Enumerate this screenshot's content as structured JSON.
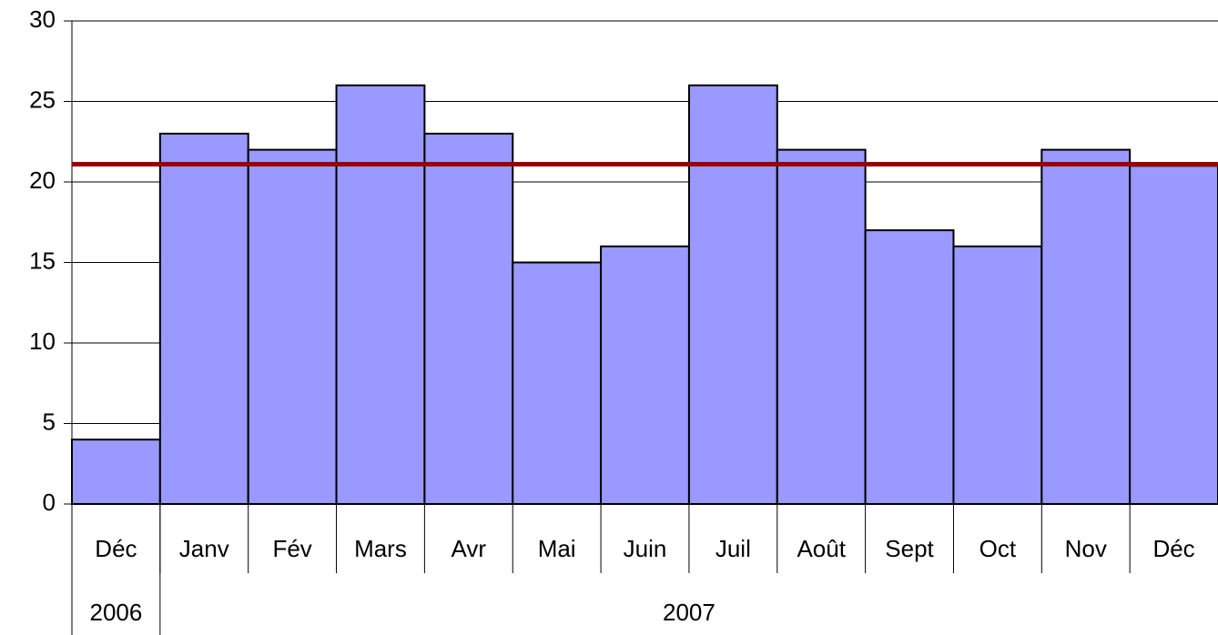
{
  "chart_data": {
    "type": "bar",
    "categories": [
      "Déc",
      "Janv",
      "Fév",
      "Mars",
      "Avr",
      "Mai",
      "Juin",
      "Juil",
      "Août",
      "Sept",
      "Oct",
      "Nov",
      "Déc"
    ],
    "values": [
      4,
      23,
      22,
      26,
      23,
      15,
      16,
      26,
      22,
      17,
      16,
      22,
      21
    ],
    "color": "#9999ff",
    "groups": [
      {
        "label": "2006",
        "count": 1
      },
      {
        "label": "2007",
        "count": 12
      }
    ],
    "reference_line": {
      "value": 21.1,
      "color": "#990000"
    },
    "ylim": [
      0,
      30
    ],
    "yticks": [
      0,
      5,
      10,
      15,
      20,
      25,
      30
    ],
    "grid": true
  }
}
